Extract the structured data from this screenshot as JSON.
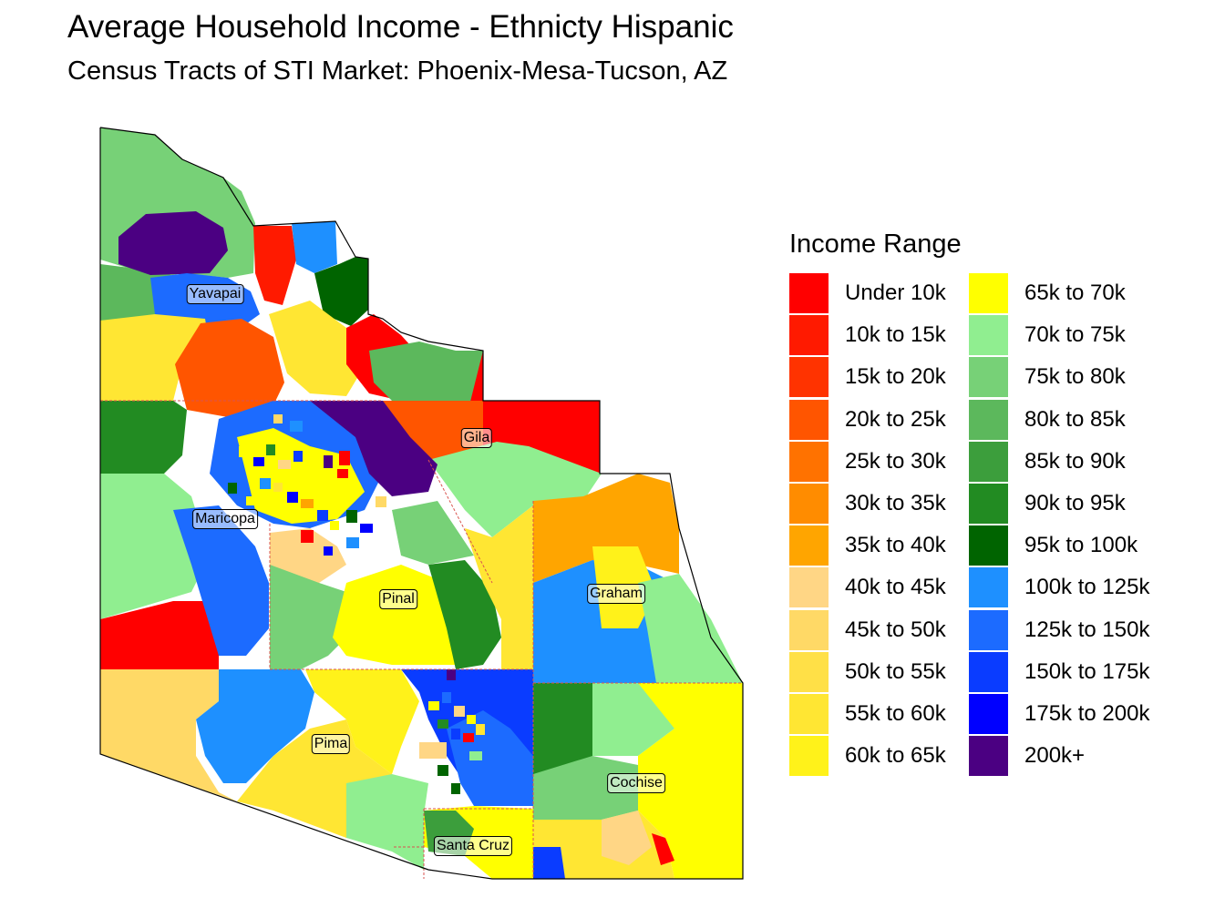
{
  "title": "Average Household Income - Ethnicty Hispanic",
  "subtitle": "Census Tracts of STI Market: Phoenix-Mesa-Tucson, AZ",
  "legend": {
    "title": "Income Range",
    "items": [
      {
        "label": "Under 10k",
        "color": "#FF0000"
      },
      {
        "label": "10k to 15k",
        "color": "#FF1A00"
      },
      {
        "label": "15k to 20k",
        "color": "#FF3300"
      },
      {
        "label": "20k to 25k",
        "color": "#FF5500"
      },
      {
        "label": "25k to 30k",
        "color": "#FF7200"
      },
      {
        "label": "30k to 35k",
        "color": "#FF8C00"
      },
      {
        "label": "35k to 40k",
        "color": "#FFA500"
      },
      {
        "label": "40k to 45k",
        "color": "#FFD685"
      },
      {
        "label": "45k to 50k",
        "color": "#FFD966"
      },
      {
        "label": "50k to 55k",
        "color": "#FFE047"
      },
      {
        "label": "55k to 60k",
        "color": "#FFE633"
      },
      {
        "label": "60k to 65k",
        "color": "#FFF21A"
      },
      {
        "label": "65k to 70k",
        "color": "#FFFF00"
      },
      {
        "label": "70k to 75k",
        "color": "#90EE90"
      },
      {
        "label": "75k to 80k",
        "color": "#77D177"
      },
      {
        "label": "80k to 85k",
        "color": "#5CB85C"
      },
      {
        "label": "85k to 90k",
        "color": "#3C9E3C"
      },
      {
        "label": "90k to 95k",
        "color": "#228B22"
      },
      {
        "label": "95k to 100k",
        "color": "#006400"
      },
      {
        "label": "100k to 125k",
        "color": "#1E90FF"
      },
      {
        "label": "125k to 150k",
        "color": "#1C6BFF"
      },
      {
        "label": "150k to 175k",
        "color": "#0A3CFF"
      },
      {
        "label": "175k to 200k",
        "color": "#0000FF"
      },
      {
        "label": "200k+",
        "color": "#4B0082"
      }
    ]
  },
  "counties": [
    {
      "name": "Yavapai"
    },
    {
      "name": "Gila"
    },
    {
      "name": "Maricopa"
    },
    {
      "name": "Graham"
    },
    {
      "name": "Pinal"
    },
    {
      "name": "Pima"
    },
    {
      "name": "Cochise"
    },
    {
      "name": "Santa Cruz"
    }
  ]
}
